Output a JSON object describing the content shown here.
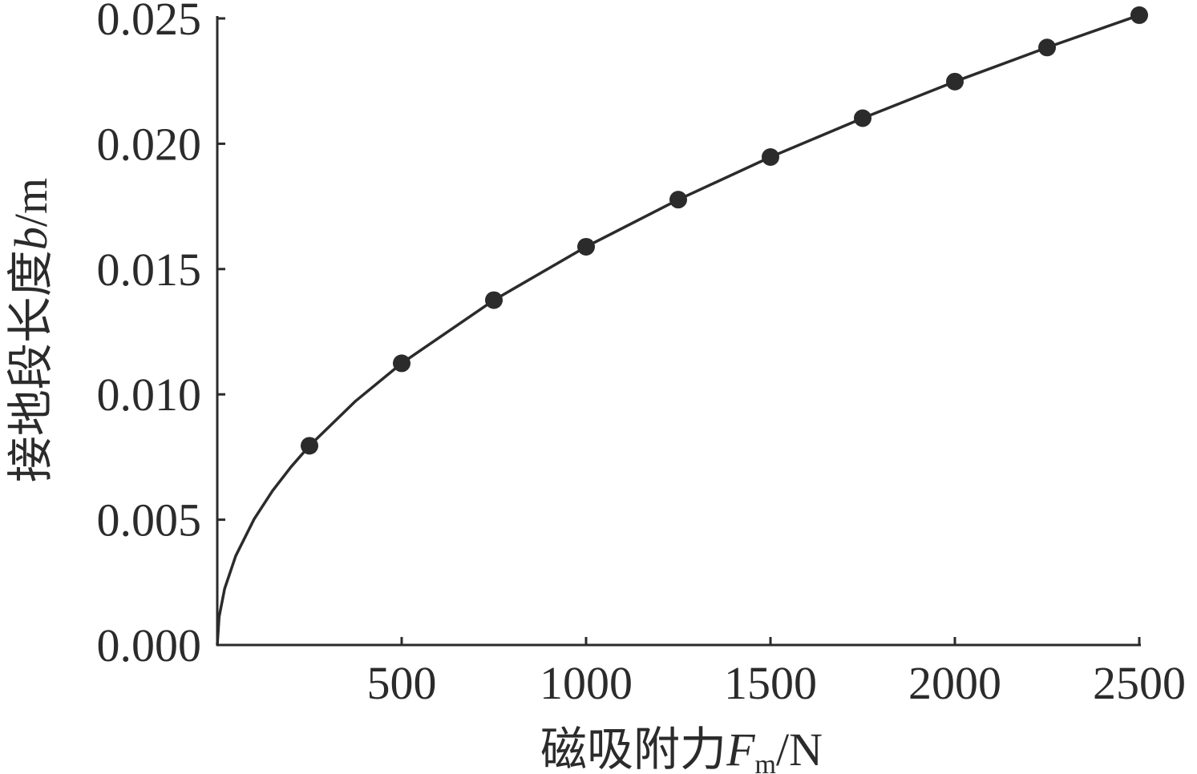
{
  "chart_data": {
    "type": "line",
    "x_label": [
      "磁吸附力",
      "F",
      "m",
      "/N"
    ],
    "y_label": [
      "接地段长度",
      "b",
      "/m"
    ],
    "xlim": [
      0,
      2500
    ],
    "ylim": [
      0,
      0.025
    ],
    "xticks": [
      500,
      1000,
      1500,
      2000,
      2500
    ],
    "yticks": [
      {
        "value": 0,
        "label": "0.000"
      },
      {
        "value": 0.005,
        "label": "0.005"
      },
      {
        "value": 0.01,
        "label": "0.010"
      },
      {
        "value": 0.015,
        "label": "0.015"
      },
      {
        "value": 0.02,
        "label": "0.020"
      },
      {
        "value": 0.025,
        "label": "0.025"
      }
    ],
    "series": [
      {
        "color": "#2b2b2b",
        "marker": false,
        "x": [
          0,
          5,
          20,
          50,
          100,
          150,
          200,
          250,
          375,
          500,
          750,
          1000,
          1250,
          1500,
          1750,
          2000,
          2250,
          2500
        ],
        "values": [
          0,
          0.001124,
          0.002248,
          0.003554,
          0.005026,
          0.006156,
          0.007108,
          0.00795,
          0.009733,
          0.01124,
          0.01376,
          0.01589,
          0.01777,
          0.01947,
          0.02102,
          0.02248,
          0.02384,
          0.02513
        ]
      },
      {
        "color": "#2b2b2b",
        "marker": true,
        "x": [
          250,
          500,
          750,
          1000,
          1250,
          1500,
          1750,
          2000,
          2250,
          2500
        ],
        "values": [
          0.00795,
          0.01124,
          0.01376,
          0.01589,
          0.01777,
          0.01947,
          0.02102,
          0.02248,
          0.02384,
          0.02513
        ]
      }
    ]
  }
}
